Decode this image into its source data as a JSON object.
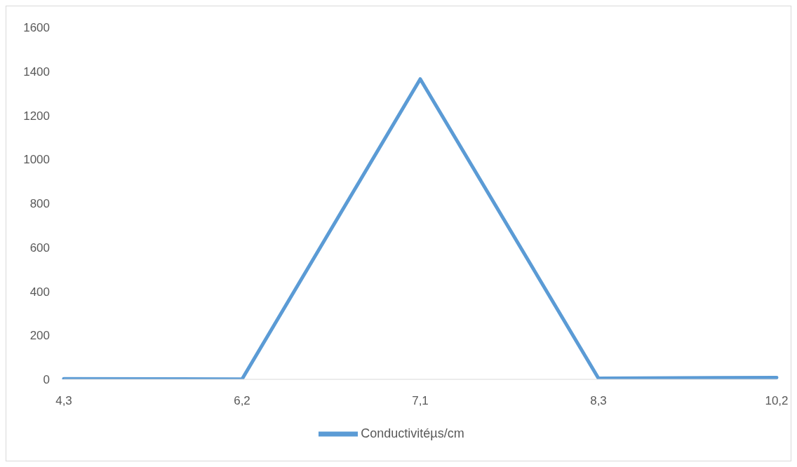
{
  "chart_data": {
    "type": "line",
    "categories": [
      "4,3",
      "6,2",
      "7,1",
      "8,3",
      "10,2"
    ],
    "series": [
      {
        "name": "Conductivitéµs/cm",
        "color": "#5b9bd5",
        "values": [
          2,
          1,
          1365,
          5,
          8
        ]
      }
    ],
    "ylim": [
      0,
      1600
    ],
    "yticks": [
      0,
      200,
      400,
      600,
      800,
      1000,
      1200,
      1400,
      1600
    ],
    "grid": false,
    "legend": "bottom",
    "marker": "none",
    "line_style": "solid"
  }
}
